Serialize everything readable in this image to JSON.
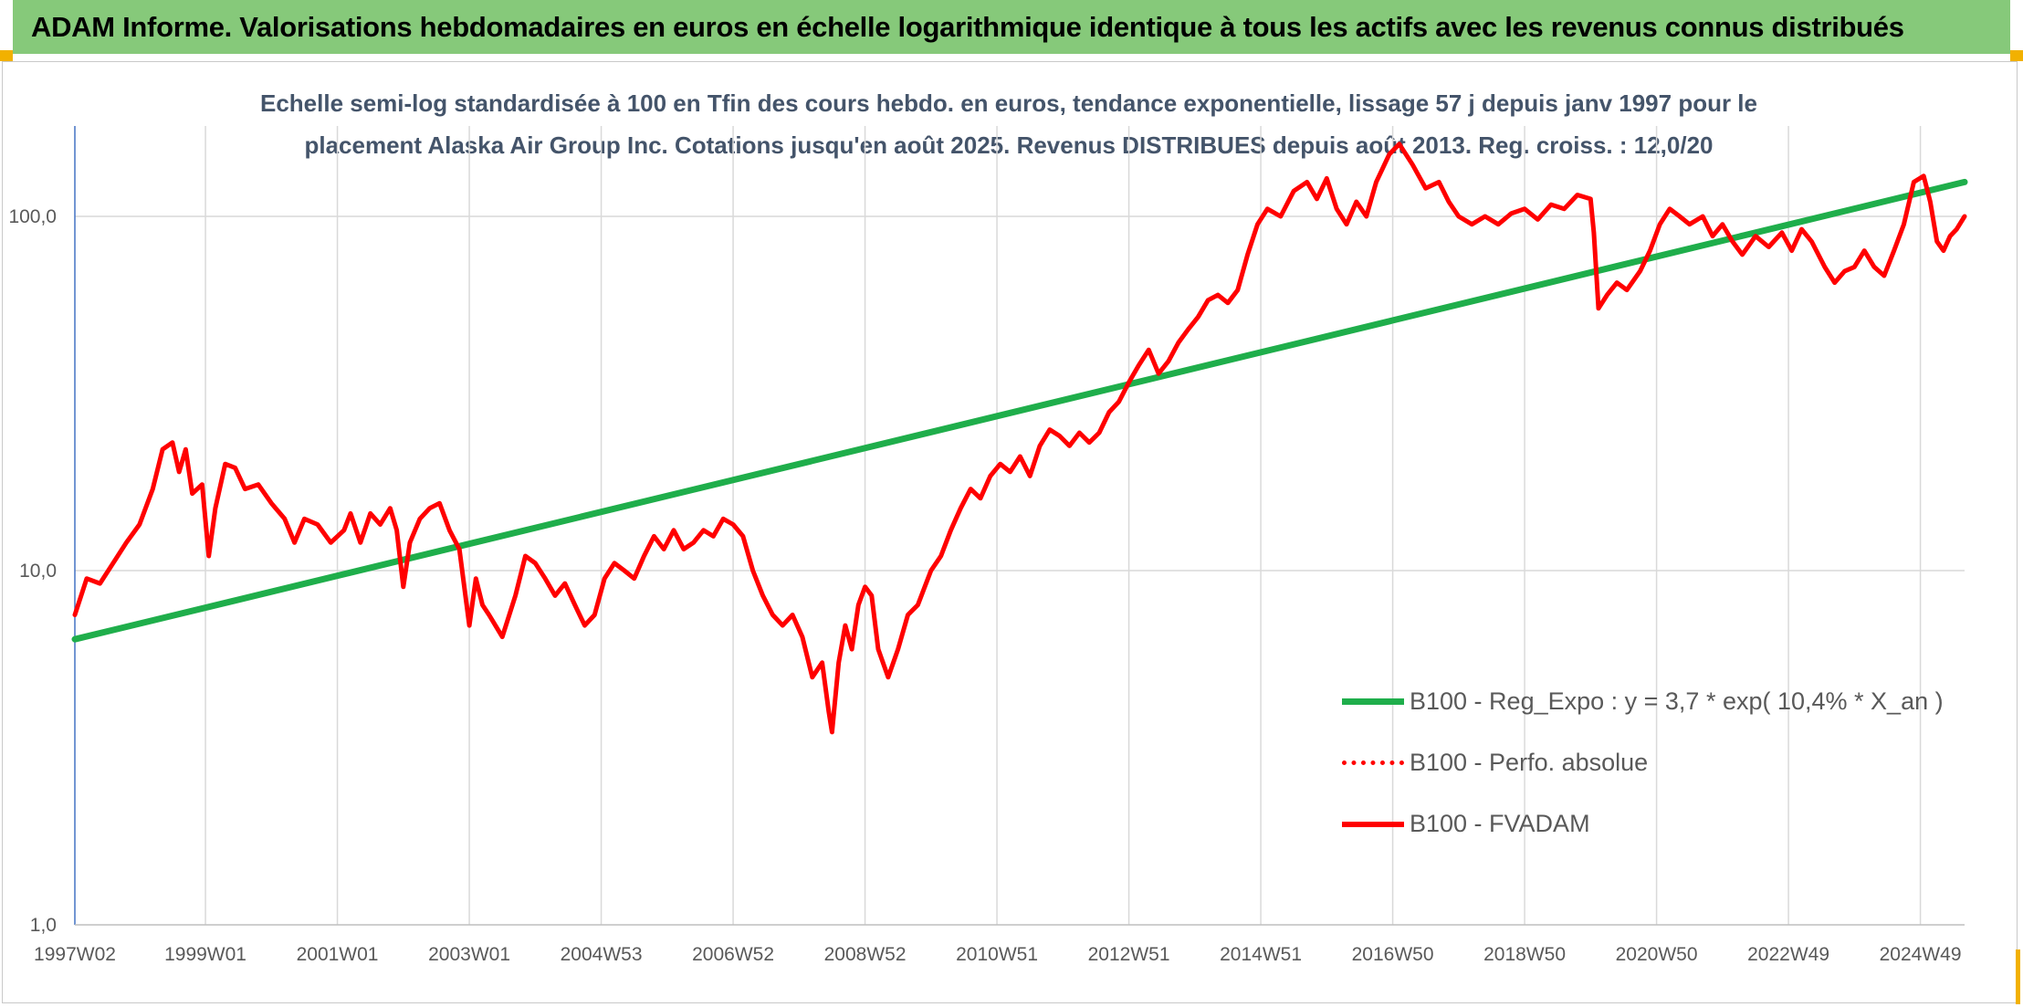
{
  "header": {
    "title": "ADAM Informe. Valorisations hebdomadaires en euros en échelle logarithmique identique à tous les actifs avec les revenus connus distribués"
  },
  "colors": {
    "banner": "#86c97a",
    "accent": "#f2b100",
    "trend": "#1fae4b",
    "fvadam": "#ff0000",
    "perfo": "#ff0000",
    "grid": "#d9d9d9",
    "title_text": "#44546a"
  },
  "chart_data": {
    "type": "line",
    "title": "Echelle semi-log standardisée à 100 en Tfin des cours hebdo. en euros, tendance exponentielle, lissage 57 j depuis janv 1997 pour le placement Alaska Air Group Inc. Cotations jusqu'en août 2025. Revenus DISTRIBUES depuis août 2013. Reg. croiss. : 12,0/20",
    "title_lines": [
      "Echelle semi-log standardisée à 100 en Tfin des cours hebdo. en euros, tendance exponentielle, lissage 57 j depuis janv 1997 pour le",
      "placement Alaska Air Group Inc. Cotations jusqu'en août 2025. Revenus DISTRIBUES depuis août 2013. Reg. croiss. : 12,0/20"
    ],
    "y_scale": "log",
    "ylim": [
      1,
      180
    ],
    "y_ticks": [
      {
        "value": 1,
        "label": "1,0"
      },
      {
        "value": 10,
        "label": "10,0"
      },
      {
        "value": 100,
        "label": "100,0"
      }
    ],
    "xlim": [
      1997.02,
      2025.67
    ],
    "x_ticks": [
      {
        "value": 1997.02,
        "label": "1997W02"
      },
      {
        "value": 1999.0,
        "label": "1999W01"
      },
      {
        "value": 2001.0,
        "label": "2001W01"
      },
      {
        "value": 2003.0,
        "label": "2003W01"
      },
      {
        "value": 2005.0,
        "label": "2004W53"
      },
      {
        "value": 2007.0,
        "label": "2006W52"
      },
      {
        "value": 2009.0,
        "label": "2008W52"
      },
      {
        "value": 2011.0,
        "label": "2010W51"
      },
      {
        "value": 2013.0,
        "label": "2012W51"
      },
      {
        "value": 2015.0,
        "label": "2014W51"
      },
      {
        "value": 2017.0,
        "label": "2016W50"
      },
      {
        "value": 2019.0,
        "label": "2018W50"
      },
      {
        "value": 2021.0,
        "label": "2020W50"
      },
      {
        "value": 2023.0,
        "label": "2022W49"
      },
      {
        "value": 2025.0,
        "label": "2024W49"
      }
    ],
    "grid": "vertical and horizontal",
    "legend_position": "bottom-right",
    "series": [
      {
        "name": "B100 - Reg_Expo : y = 3,7 * exp( 10,4% *  X_an )",
        "color": "#1fae4b",
        "style": "solid",
        "points": [
          [
            1997.02,
            6.4
          ],
          [
            2025.67,
            125
          ]
        ]
      },
      {
        "name": "B100 - Perfo. absolue",
        "color": "#ff0000",
        "style": "dotted",
        "points": []
      },
      {
        "name": "B100 - FVADAM",
        "color": "#ff0000",
        "style": "solid",
        "points": [
          [
            1997.02,
            7.5
          ],
          [
            1997.2,
            9.5
          ],
          [
            1997.4,
            9.2
          ],
          [
            1997.6,
            10.5
          ],
          [
            1997.8,
            12.0
          ],
          [
            1998.0,
            13.5
          ],
          [
            1998.2,
            17.0
          ],
          [
            1998.35,
            22.0
          ],
          [
            1998.5,
            23.0
          ],
          [
            1998.6,
            19.0
          ],
          [
            1998.7,
            22.0
          ],
          [
            1998.8,
            16.5
          ],
          [
            1998.95,
            17.5
          ],
          [
            1999.05,
            11.0
          ],
          [
            1999.15,
            15.0
          ],
          [
            1999.3,
            20.0
          ],
          [
            1999.45,
            19.5
          ],
          [
            1999.6,
            17.0
          ],
          [
            1999.8,
            17.5
          ],
          [
            2000.0,
            15.5
          ],
          [
            2000.2,
            14.0
          ],
          [
            2000.35,
            12.0
          ],
          [
            2000.5,
            14.0
          ],
          [
            2000.7,
            13.5
          ],
          [
            2000.9,
            12.0
          ],
          [
            2001.1,
            13.0
          ],
          [
            2001.2,
            14.5
          ],
          [
            2001.35,
            12.0
          ],
          [
            2001.5,
            14.5
          ],
          [
            2001.65,
            13.5
          ],
          [
            2001.8,
            15.0
          ],
          [
            2001.9,
            13.0
          ],
          [
            2002.0,
            9.0
          ],
          [
            2002.1,
            12.0
          ],
          [
            2002.25,
            14.0
          ],
          [
            2002.4,
            15.0
          ],
          [
            2002.55,
            15.5
          ],
          [
            2002.7,
            13.0
          ],
          [
            2002.85,
            11.5
          ],
          [
            2003.0,
            7.0
          ],
          [
            2003.1,
            9.5
          ],
          [
            2003.2,
            8.0
          ],
          [
            2003.3,
            7.5
          ],
          [
            2003.5,
            6.5
          ],
          [
            2003.7,
            8.5
          ],
          [
            2003.85,
            11.0
          ],
          [
            2004.0,
            10.5
          ],
          [
            2004.15,
            9.5
          ],
          [
            2004.3,
            8.5
          ],
          [
            2004.45,
            9.2
          ],
          [
            2004.6,
            8.0
          ],
          [
            2004.75,
            7.0
          ],
          [
            2004.9,
            7.5
          ],
          [
            2005.05,
            9.5
          ],
          [
            2005.2,
            10.5
          ],
          [
            2005.35,
            10.0
          ],
          [
            2005.5,
            9.5
          ],
          [
            2005.65,
            11.0
          ],
          [
            2005.8,
            12.5
          ],
          [
            2005.95,
            11.5
          ],
          [
            2006.1,
            13.0
          ],
          [
            2006.25,
            11.5
          ],
          [
            2006.4,
            12.0
          ],
          [
            2006.55,
            13.0
          ],
          [
            2006.7,
            12.5
          ],
          [
            2006.85,
            14.0
          ],
          [
            2007.0,
            13.5
          ],
          [
            2007.15,
            12.5
          ],
          [
            2007.3,
            10.0
          ],
          [
            2007.45,
            8.5
          ],
          [
            2007.6,
            7.5
          ],
          [
            2007.75,
            7.0
          ],
          [
            2007.9,
            7.5
          ],
          [
            2008.05,
            6.5
          ],
          [
            2008.2,
            5.0
          ],
          [
            2008.35,
            5.5
          ],
          [
            2008.45,
            4.0
          ],
          [
            2008.5,
            3.5
          ],
          [
            2008.6,
            5.5
          ],
          [
            2008.7,
            7.0
          ],
          [
            2008.8,
            6.0
          ],
          [
            2008.9,
            8.0
          ],
          [
            2009.0,
            9.0
          ],
          [
            2009.1,
            8.5
          ],
          [
            2009.2,
            6.0
          ],
          [
            2009.35,
            5.0
          ],
          [
            2009.5,
            6.0
          ],
          [
            2009.65,
            7.5
          ],
          [
            2009.8,
            8.0
          ],
          [
            2010.0,
            10.0
          ],
          [
            2010.15,
            11.0
          ],
          [
            2010.3,
            13.0
          ],
          [
            2010.45,
            15.0
          ],
          [
            2010.6,
            17.0
          ],
          [
            2010.75,
            16.0
          ],
          [
            2010.9,
            18.5
          ],
          [
            2011.05,
            20.0
          ],
          [
            2011.2,
            19.0
          ],
          [
            2011.35,
            21.0
          ],
          [
            2011.5,
            18.5
          ],
          [
            2011.65,
            22.5
          ],
          [
            2011.8,
            25.0
          ],
          [
            2011.95,
            24.0
          ],
          [
            2012.1,
            22.5
          ],
          [
            2012.25,
            24.5
          ],
          [
            2012.4,
            23.0
          ],
          [
            2012.55,
            24.5
          ],
          [
            2012.7,
            28.0
          ],
          [
            2012.85,
            30.0
          ],
          [
            2013.0,
            34.0
          ],
          [
            2013.15,
            38.0
          ],
          [
            2013.3,
            42.0
          ],
          [
            2013.45,
            36.0
          ],
          [
            2013.6,
            39.0
          ],
          [
            2013.75,
            44.0
          ],
          [
            2013.9,
            48.0
          ],
          [
            2014.05,
            52.0
          ],
          [
            2014.2,
            58.0
          ],
          [
            2014.35,
            60.0
          ],
          [
            2014.5,
            57.0
          ],
          [
            2014.65,
            62.0
          ],
          [
            2014.8,
            78.0
          ],
          [
            2014.95,
            95.0
          ],
          [
            2015.1,
            105.0
          ],
          [
            2015.3,
            100.0
          ],
          [
            2015.5,
            118.0
          ],
          [
            2015.7,
            125.0
          ],
          [
            2015.85,
            112.0
          ],
          [
            2016.0,
            128.0
          ],
          [
            2016.15,
            105.0
          ],
          [
            2016.3,
            95.0
          ],
          [
            2016.45,
            110.0
          ],
          [
            2016.6,
            100.0
          ],
          [
            2016.75,
            125.0
          ],
          [
            2016.95,
            150.0
          ],
          [
            2017.1,
            160.0
          ],
          [
            2017.3,
            140.0
          ],
          [
            2017.5,
            120.0
          ],
          [
            2017.7,
            125.0
          ],
          [
            2017.85,
            110.0
          ],
          [
            2018.0,
            100.0
          ],
          [
            2018.2,
            95.0
          ],
          [
            2018.4,
            100.0
          ],
          [
            2018.6,
            95.0
          ],
          [
            2018.8,
            102.0
          ],
          [
            2019.0,
            105.0
          ],
          [
            2019.2,
            98.0
          ],
          [
            2019.4,
            108.0
          ],
          [
            2019.6,
            105.0
          ],
          [
            2019.8,
            115.0
          ],
          [
            2020.0,
            112.0
          ],
          [
            2020.05,
            90.0
          ],
          [
            2020.12,
            55.0
          ],
          [
            2020.25,
            60.0
          ],
          [
            2020.4,
            65.0
          ],
          [
            2020.55,
            62.0
          ],
          [
            2020.75,
            70.0
          ],
          [
            2020.9,
            80.0
          ],
          [
            2021.05,
            95.0
          ],
          [
            2021.2,
            105.0
          ],
          [
            2021.35,
            100.0
          ],
          [
            2021.5,
            95.0
          ],
          [
            2021.7,
            100.0
          ],
          [
            2021.85,
            88.0
          ],
          [
            2022.0,
            95.0
          ],
          [
            2022.15,
            85.0
          ],
          [
            2022.3,
            78.0
          ],
          [
            2022.5,
            88.0
          ],
          [
            2022.7,
            82.0
          ],
          [
            2022.9,
            90.0
          ],
          [
            2023.05,
            80.0
          ],
          [
            2023.2,
            92.0
          ],
          [
            2023.35,
            85.0
          ],
          [
            2023.55,
            72.0
          ],
          [
            2023.7,
            65.0
          ],
          [
            2023.85,
            70.0
          ],
          [
            2024.0,
            72.0
          ],
          [
            2024.15,
            80.0
          ],
          [
            2024.3,
            72.0
          ],
          [
            2024.45,
            68.0
          ],
          [
            2024.6,
            80.0
          ],
          [
            2024.75,
            95.0
          ],
          [
            2024.9,
            125.0
          ],
          [
            2025.05,
            130.0
          ],
          [
            2025.15,
            110.0
          ],
          [
            2025.25,
            85.0
          ],
          [
            2025.35,
            80.0
          ],
          [
            2025.45,
            88.0
          ],
          [
            2025.55,
            92.0
          ],
          [
            2025.67,
            100.0
          ]
        ]
      }
    ]
  }
}
